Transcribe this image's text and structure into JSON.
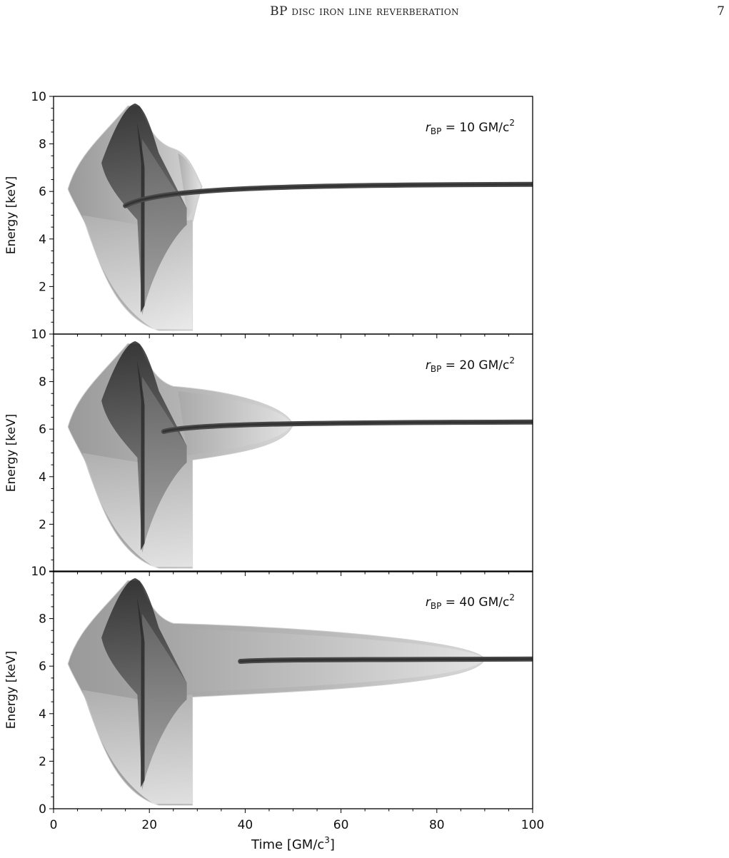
{
  "header": {
    "running_title": "BP disc iron line reverberation",
    "page_number": "7"
  },
  "chart_data": [
    {
      "type": "heatmap",
      "annotation": {
        "italic": "r",
        "sub": "BP",
        "rest": " = 10 GM/c",
        "sup": "2"
      },
      "ylabel": "Energy [keV]",
      "xlim": [
        0,
        100
      ],
      "ylim": [
        0,
        10
      ],
      "yticks": [
        2,
        4,
        6,
        8,
        10
      ],
      "colormap": "grayscale",
      "features": {
        "envelope_outer_time": 31,
        "envelope_outer_energy": 6.2,
        "ridge_start_time": 15,
        "ridge_start_energy": 5.4,
        "ridge_asymptote_energy": 6.3,
        "peak_time": 17,
        "peak_energy": 9.7
      }
    },
    {
      "type": "heatmap",
      "annotation": {
        "italic": "r",
        "sub": "BP",
        "rest": " = 20 GM/c",
        "sup": "2"
      },
      "ylabel": "Energy [keV]",
      "xlim": [
        0,
        100
      ],
      "ylim": [
        0,
        10
      ],
      "yticks": [
        2,
        4,
        6,
        8,
        10
      ],
      "colormap": "grayscale",
      "features": {
        "envelope_outer_time": 50,
        "envelope_outer_energy": 6.2,
        "ridge_start_time": 23,
        "ridge_start_energy": 5.9,
        "ridge_asymptote_energy": 6.3,
        "peak_time": 17,
        "peak_energy": 9.7
      }
    },
    {
      "type": "heatmap",
      "annotation": {
        "italic": "r",
        "sub": "BP",
        "rest": " = 40 GM/c",
        "sup": "2"
      },
      "ylabel": "Energy [keV]",
      "xlabel": {
        "main": "Time [GM/c",
        "sup": "3",
        "end": "]"
      },
      "xlim": [
        0,
        100
      ],
      "ylim": [
        0,
        10
      ],
      "xticks": [
        0,
        20,
        40,
        60,
        80,
        100
      ],
      "yticks": [
        0,
        2,
        4,
        6,
        8,
        10
      ],
      "colormap": "grayscale",
      "features": {
        "envelope_outer_time": 90,
        "envelope_outer_energy": 6.3,
        "ridge_start_time": 39,
        "ridge_start_energy": 6.2,
        "ridge_asymptote_energy": 6.3,
        "peak_time": 17,
        "peak_energy": 9.7
      }
    }
  ]
}
